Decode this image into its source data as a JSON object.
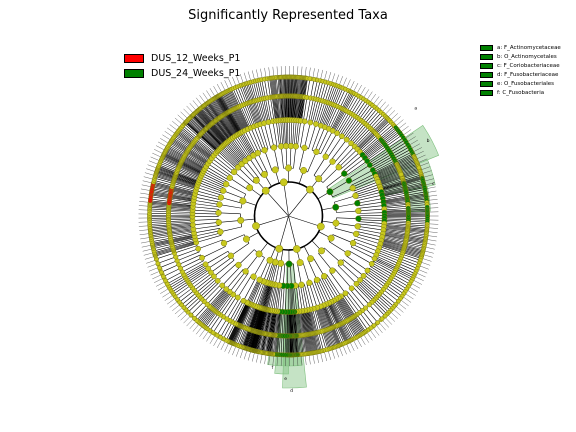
{
  "title": "Significantly Represented Taxa",
  "legend": [
    {
      "label": "DUS_12_Weeks_P1",
      "color": "#ff0000"
    },
    {
      "label": "DUS_24_Weeks_P1",
      "color": "#008000"
    }
  ],
  "taxa_legend": [
    {
      "label": "a: F_Actinomycetaceae",
      "color": "#008000"
    },
    {
      "label": "b: O_Actinomycetales",
      "color": "#008000"
    },
    {
      "label": "c: F_Coriobacteriaceae",
      "color": "#008000"
    },
    {
      "label": "d: F_Fusobacteriaceae",
      "color": "#008000"
    },
    {
      "label": "e: O_Fusobacteriales",
      "color": "#008000"
    },
    {
      "label": "f: C_Fusobacteria",
      "color": "#008000"
    }
  ],
  "clade_labels": [
    "a",
    "b",
    "c",
    "d",
    "e",
    "f"
  ],
  "colors": {
    "node": "#c8c81e",
    "node_edge": "#7a7a10",
    "enriched": "#008000",
    "depleted": "#ff0000",
    "highlight": "#7fc07f"
  }
}
